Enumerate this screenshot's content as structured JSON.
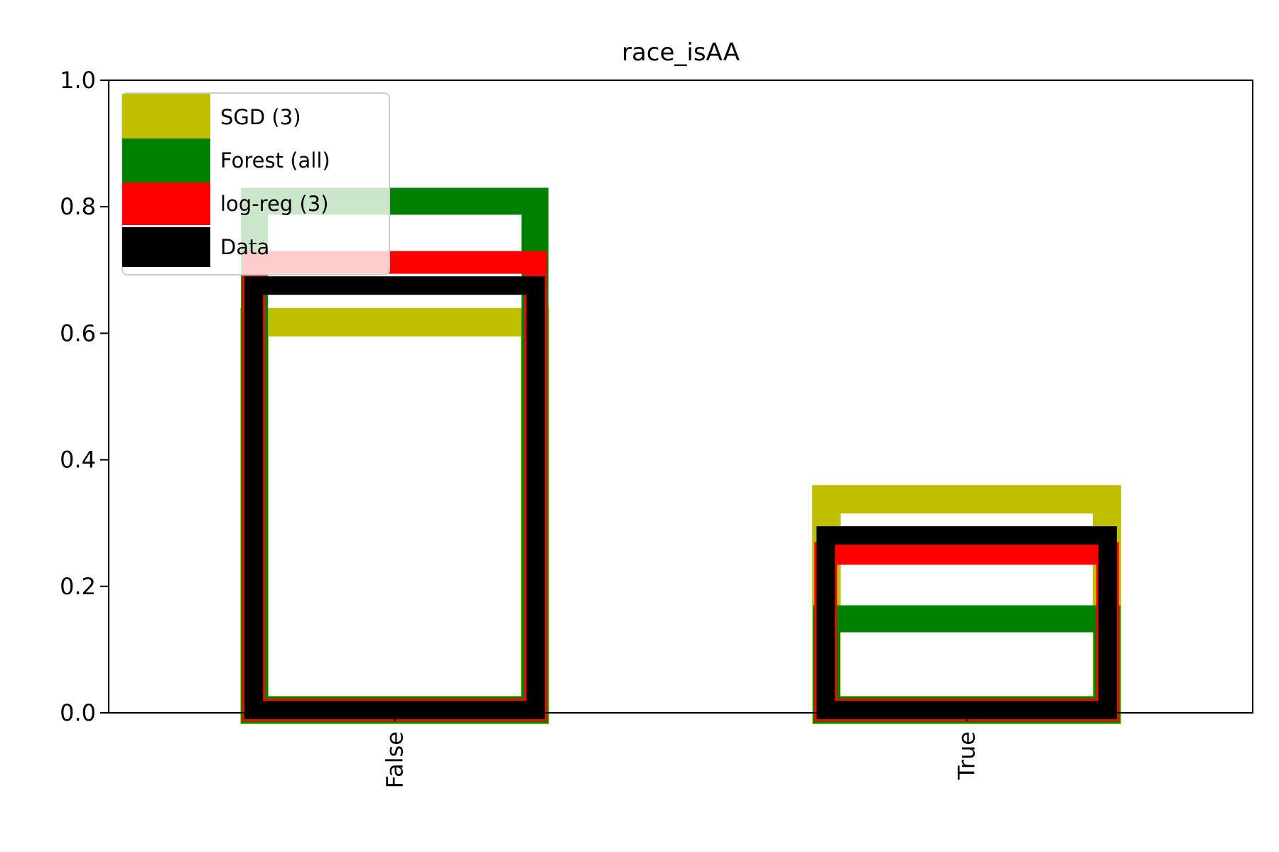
{
  "chart_data": {
    "type": "bar",
    "title": "race_isAA",
    "xlabel": "",
    "ylabel": "",
    "categories": [
      "False",
      "True"
    ],
    "ylim": [
      0,
      1.0
    ],
    "yticks": [
      "0.0",
      "0.2",
      "0.4",
      "0.6",
      "0.8",
      "1.0"
    ],
    "grid": false,
    "legend_position": "upper left",
    "bar_style": "unfilled outline bars, overlaid per category",
    "series": [
      {
        "name": "SGD (3)",
        "color": "#bfbf00",
        "values": [
          0.64,
          0.36
        ]
      },
      {
        "name": "Forest (all)",
        "color": "#008000",
        "values": [
          0.83,
          0.17
        ]
      },
      {
        "name": "log-reg (3)",
        "color": "#ff0000",
        "values": [
          0.73,
          0.27
        ]
      },
      {
        "name": "Data",
        "color": "#000000",
        "values": [
          0.69,
          0.295
        ]
      }
    ]
  }
}
